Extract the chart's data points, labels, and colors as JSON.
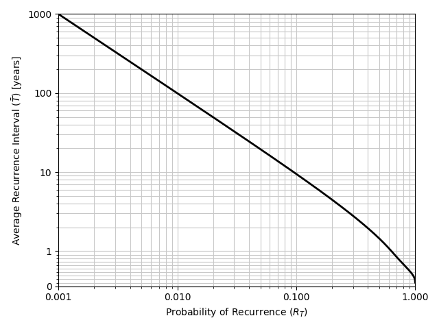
{
  "xlabel": "Probability of Recurrence ($R_T$)",
  "ylabel": "Average Recurrence Interval ($\\bar{T}$) [years]",
  "x_min": 0.001,
  "x_max": 1.0,
  "y_min": 0.0,
  "y_max": 1000,
  "line_color": "black",
  "line_width": 2.0,
  "grid_color": "#c8c8c8",
  "yticks_major": [
    0,
    1,
    10,
    100,
    1000
  ],
  "y_tick_labels": [
    "0",
    "1",
    "10",
    "100",
    "1000"
  ],
  "xticks_major": [
    0.001,
    0.01,
    0.1,
    1.0
  ],
  "x_tick_labels": [
    "0.001",
    "0.010",
    "0.100",
    "1.000"
  ],
  "linthresh": 1.0,
  "linscale": 0.4
}
